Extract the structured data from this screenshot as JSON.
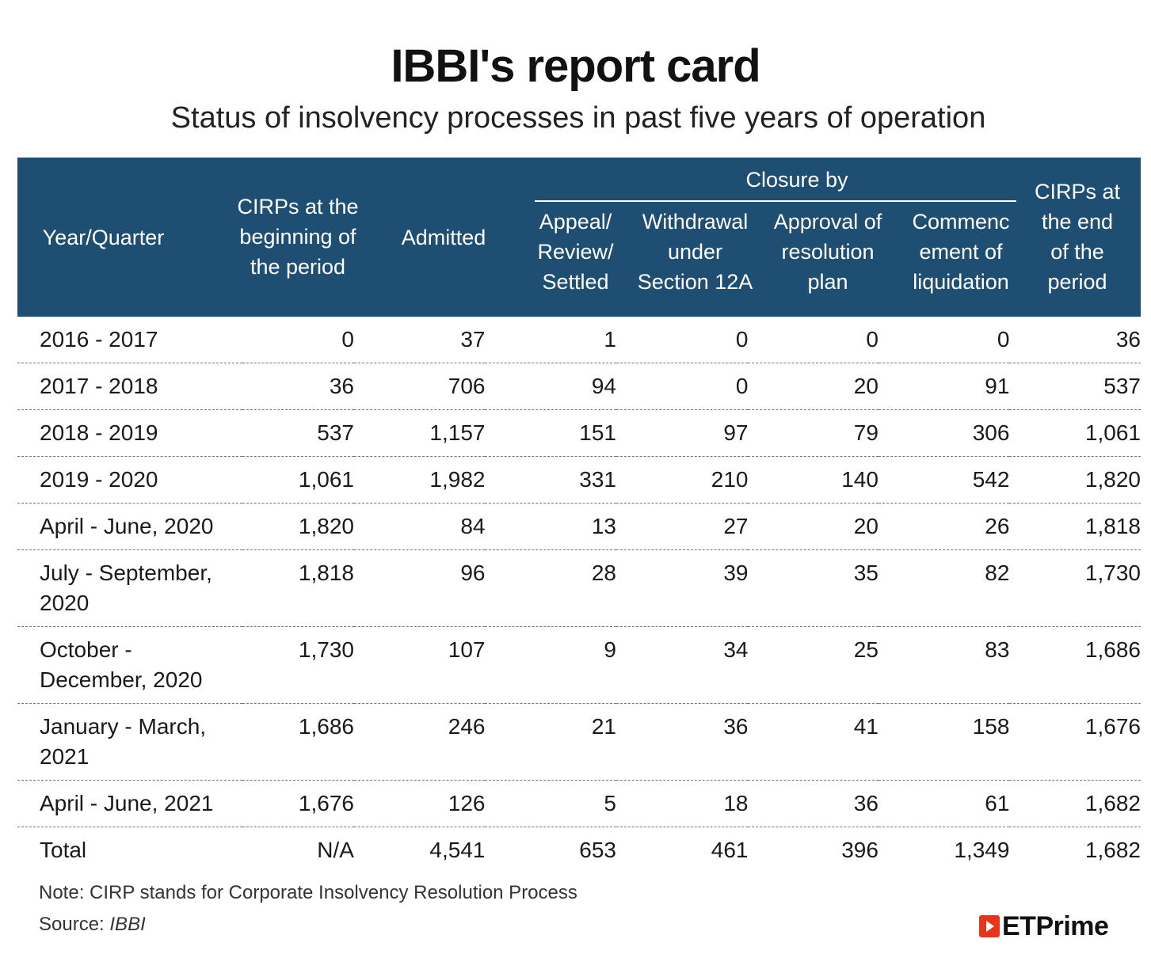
{
  "chart_data": {
    "type": "table",
    "title": "IBBI's report card",
    "subtitle": "Status of insolvency processes in past five years of operation",
    "group_header": "Closure by",
    "columns": {
      "year": "Year/Quarter",
      "begin": [
        "CIRPs at the",
        "beginning of",
        "the period"
      ],
      "admitted": "Admitted",
      "appeal": [
        "Appeal/",
        "Review/",
        "Settled"
      ],
      "withdrawal": [
        "Withdrawal",
        "under",
        "Section 12A"
      ],
      "approval": [
        "Approval of",
        "resolution",
        "plan"
      ],
      "liquidation": [
        "Commenc",
        "ement of",
        "liquidation"
      ],
      "end": [
        "CIRPs at",
        "the end",
        "of the",
        "period"
      ]
    },
    "rows": [
      {
        "period": [
          "2016 - 2017"
        ],
        "begin": "0",
        "admitted": "37",
        "appeal": "1",
        "withdrawal": "0",
        "approval": "0",
        "liquidation": "0",
        "end": "36"
      },
      {
        "period": [
          "2017 - 2018"
        ],
        "begin": "36",
        "admitted": "706",
        "appeal": "94",
        "withdrawal": "0",
        "approval": "20",
        "liquidation": "91",
        "end": "537"
      },
      {
        "period": [
          "2018 - 2019"
        ],
        "begin": "537",
        "admitted": "1,157",
        "appeal": "151",
        "withdrawal": "97",
        "approval": "79",
        "liquidation": "306",
        "end": "1,061"
      },
      {
        "period": [
          "2019 - 2020"
        ],
        "begin": "1,061",
        "admitted": "1,982",
        "appeal": "331",
        "withdrawal": "210",
        "approval": "140",
        "liquidation": "542",
        "end": "1,820"
      },
      {
        "period": [
          "April - June, 2020"
        ],
        "begin": "1,820",
        "admitted": "84",
        "appeal": "13",
        "withdrawal": "27",
        "approval": "20",
        "liquidation": "26",
        "end": "1,818"
      },
      {
        "period": [
          "July - September,",
          "2020"
        ],
        "begin": "1,818",
        "admitted": "96",
        "appeal": "28",
        "withdrawal": "39",
        "approval": "35",
        "liquidation": "82",
        "end": "1,730"
      },
      {
        "period": [
          "October -",
          "December, 2020"
        ],
        "begin": "1,730",
        "admitted": "107",
        "appeal": "9",
        "withdrawal": "34",
        "approval": "25",
        "liquidation": "83",
        "end": "1,686"
      },
      {
        "period": [
          "January - March,",
          "2021"
        ],
        "begin": "1,686",
        "admitted": "246",
        "appeal": "21",
        "withdrawal": "36",
        "approval": "41",
        "liquidation": "158",
        "end": "1,676"
      },
      {
        "period": [
          "April - June, 2021"
        ],
        "begin": "1,676",
        "admitted": "126",
        "appeal": "5",
        "withdrawal": "18",
        "approval": "36",
        "liquidation": "61",
        "end": "1,682"
      },
      {
        "period": [
          "Total"
        ],
        "begin": "N/A",
        "admitted": "4,541",
        "appeal": "653",
        "withdrawal": "461",
        "approval": "396",
        "liquidation": "1,349",
        "end": "1,682"
      }
    ],
    "note": "Note: CIRP stands for Corporate Insolvency Resolution Process",
    "source_label": "Source: ",
    "source_value": "IBBI"
  },
  "brand": "ETPrime",
  "colors": {
    "header_bg": "#1f4e73",
    "brand_red": "#e8341c"
  }
}
